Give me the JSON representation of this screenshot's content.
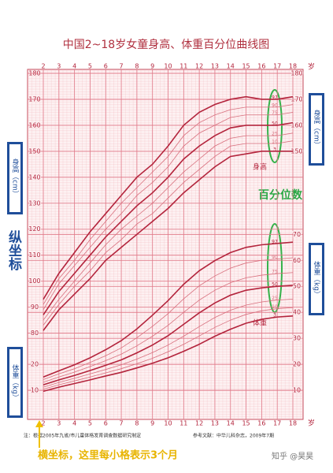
{
  "chart_data": {
    "type": "line",
    "title": "中国2~18岁女童身高、体重百分位曲线图",
    "x": [
      2,
      3,
      4,
      5,
      6,
      7,
      8,
      9,
      10,
      11,
      12,
      13,
      14,
      15,
      16,
      17,
      18
    ],
    "xlim": [
      2,
      18
    ],
    "xticks": [
      2,
      3,
      4,
      5,
      6,
      7,
      8,
      9,
      10,
      11,
      12,
      13,
      14,
      15,
      16,
      17,
      18
    ],
    "x_unit": "岁",
    "ylim": [
      48,
      180
    ],
    "y2lim": [
      0,
      132
    ],
    "yticks": [
      80,
      90,
      100,
      110,
      120,
      130,
      140,
      150,
      160,
      170,
      180
    ],
    "yticks_right": [
      150,
      160,
      170,
      180
    ],
    "y2ticks": [
      10,
      20,
      30,
      40,
      50,
      60,
      70
    ],
    "y2ticks_left": [
      10,
      20
    ],
    "y_label": "身高（cm）",
    "y2_label": "体重（kg）",
    "grid": true,
    "series": [
      {
        "name": "97",
        "color": "#b3243c",
        "line_width": 1.6,
        "values": [
          93,
          103,
          111,
          119,
          126,
          133,
          140,
          145,
          152,
          160,
          165,
          168,
          170,
          171,
          170,
          170,
          171
        ]
      },
      {
        "name": "90",
        "color": "#d8707e",
        "line_width": 0.8,
        "values": [
          91,
          101,
          108,
          116,
          123,
          130,
          136,
          142,
          148,
          156,
          161,
          164,
          166,
          167,
          167,
          167,
          168
        ]
      },
      {
        "name": "75",
        "color": "#d8707e",
        "line_width": 0.8,
        "values": [
          89,
          99,
          106,
          113,
          120,
          126,
          133,
          138,
          144,
          152,
          157,
          160,
          163,
          164,
          164,
          164,
          165
        ]
      },
      {
        "name": "50",
        "color": "#b3243c",
        "line_width": 1.6,
        "values": [
          87,
          96,
          103,
          110,
          117,
          123,
          129,
          134,
          140,
          147,
          152,
          156,
          159,
          160,
          160,
          160,
          161
        ]
      },
      {
        "name": "25",
        "color": "#d8707e",
        "line_width": 0.8,
        "values": [
          85,
          93,
          100,
          107,
          114,
          120,
          125,
          130,
          136,
          142,
          147,
          152,
          155,
          156,
          156,
          156,
          157
        ]
      },
      {
        "name": "10",
        "color": "#d8707e",
        "line_width": 0.8,
        "values": [
          83,
          91,
          98,
          104,
          111,
          116,
          122,
          126,
          132,
          138,
          143,
          148,
          152,
          153,
          153,
          153,
          154
        ]
      },
      {
        "name": "3",
        "color": "#b3243c",
        "line_width": 1.6,
        "values": [
          81,
          89,
          95,
          101,
          108,
          113,
          118,
          123,
          128,
          134,
          139,
          144,
          148,
          149,
          150,
          150,
          150
        ]
      },
      {
        "name": "97",
        "axis": "y2",
        "color": "#b3243c",
        "line_width": 1.6,
        "values": [
          15.1,
          17.5,
          19.8,
          22.5,
          25.6,
          29.1,
          33.6,
          38.9,
          44.5,
          50.8,
          56.0,
          59.9,
          63.0,
          65.0,
          66.0,
          66.5,
          67.0
        ]
      },
      {
        "name": "90",
        "axis": "y2",
        "color": "#d8707e",
        "line_width": 0.8,
        "values": [
          14.1,
          16.3,
          18.3,
          20.7,
          23.3,
          26.3,
          30.2,
          34.6,
          39.5,
          45.2,
          50.2,
          54.0,
          57.0,
          59.0,
          60.0,
          60.5,
          61.0
        ]
      },
      {
        "name": "75",
        "axis": "y2",
        "color": "#d8707e",
        "line_width": 0.8,
        "values": [
          13.1,
          15.1,
          17.0,
          19.1,
          21.4,
          23.9,
          27.1,
          30.8,
          35.0,
          40.0,
          44.7,
          48.5,
          51.4,
          53.3,
          54.3,
          54.9,
          55.3
        ]
      },
      {
        "name": "50",
        "axis": "y2",
        "color": "#b3243c",
        "line_width": 1.6,
        "values": [
          12.1,
          14.0,
          15.7,
          17.6,
          19.6,
          21.7,
          24.4,
          27.4,
          31.0,
          35.4,
          39.8,
          43.6,
          46.6,
          48.5,
          49.4,
          50.0,
          50.4
        ]
      },
      {
        "name": "25",
        "axis": "y2",
        "color": "#d8707e",
        "line_width": 0.8,
        "values": [
          11.2,
          13.0,
          14.6,
          16.3,
          18.0,
          19.8,
          22.0,
          24.5,
          27.4,
          30.8,
          34.5,
          38.0,
          40.8,
          42.8,
          44.0,
          44.7,
          45.1
        ]
      },
      {
        "name": "10",
        "axis": "y2",
        "color": "#d8707e",
        "line_width": 0.8,
        "values": [
          10.4,
          12.1,
          13.6,
          15.1,
          16.7,
          18.3,
          20.2,
          22.3,
          24.8,
          27.7,
          30.9,
          34.2,
          37.0,
          39.2,
          40.6,
          41.4,
          41.8
        ]
      },
      {
        "name": "3",
        "axis": "y2",
        "color": "#b3243c",
        "line_width": 1.6,
        "values": [
          9.6,
          11.2,
          12.6,
          14.0,
          15.5,
          16.9,
          18.6,
          20.4,
          22.5,
          25.0,
          27.7,
          30.8,
          33.5,
          35.8,
          37.3,
          38.2,
          38.6
        ]
      }
    ],
    "curve_labels": {
      "height": "身高",
      "weight": "体重"
    },
    "annotations": {
      "y_axis_note": "纵坐标",
      "percentile_note": "百分位数",
      "x_axis_note": "横坐标，这里每小格表示3个月"
    },
    "note": "注：根据2005年九省/市儿童体格发育调查数据研究制定",
    "reference": "参考文献：中华儿科杂志，2009年7期",
    "watermark": "知乎 @昊昊"
  }
}
